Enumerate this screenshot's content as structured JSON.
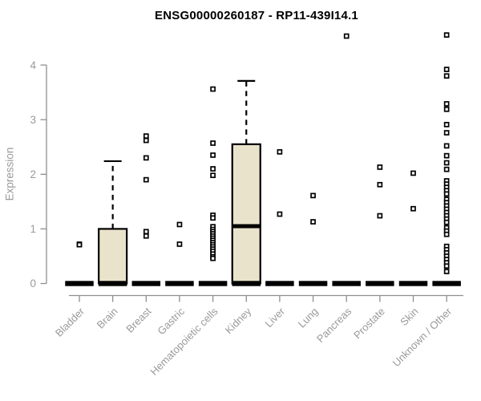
{
  "chart_data": {
    "type": "boxplot",
    "title": "ENSG00000260187 - RP11-439I14.1",
    "ylabel": "Expression",
    "xlabel": "",
    "ylim": [
      0,
      4.67
    ],
    "yticks": [
      0,
      1,
      2,
      3,
      4
    ],
    "grid": false,
    "legend": null,
    "colors": {
      "background": "#FFFFFF",
      "box_fill": "#EAE3CB",
      "box_stroke": "#000000",
      "axis_line": "#8F8F8F",
      "tick_text": "#9A9A9A",
      "title_text": "#000000",
      "outlier_fill": "#FFFFFF"
    },
    "categories": [
      "Bladder",
      "Brain",
      "Breast",
      "Gastric",
      "Hematopoietic cells",
      "Kidney",
      "Liver",
      "Lung",
      "Pancreas",
      "Prostate",
      "Skin",
      "Unknown / Other"
    ],
    "series": [
      {
        "name": "Bladder",
        "q1": 0,
        "median": 0,
        "q3": 0,
        "whisker_low": 0,
        "whisker_high": 0,
        "outliers": [
          0.72,
          0.71
        ]
      },
      {
        "name": "Brain",
        "q1": 0,
        "median": 0,
        "q3": 1.0,
        "whisker_low": 0,
        "whisker_high": 2.24,
        "outliers": []
      },
      {
        "name": "Breast",
        "q1": 0,
        "median": 0,
        "q3": 0,
        "whisker_low": 0,
        "whisker_high": 0,
        "outliers": [
          2.7,
          2.62,
          2.3,
          1.9,
          0.95,
          0.87
        ]
      },
      {
        "name": "Gastric",
        "q1": 0,
        "median": 0,
        "q3": 0,
        "whisker_low": 0,
        "whisker_high": 0,
        "outliers": [
          1.08,
          0.72
        ]
      },
      {
        "name": "Hematopoietic cells",
        "q1": 0,
        "median": 0,
        "q3": 0,
        "whisker_low": 0,
        "whisker_high": 0,
        "outliers": [
          3.56,
          2.57,
          2.35,
          2.1,
          1.98,
          1.25,
          1.2,
          1.04,
          0.99,
          0.95,
          0.91,
          0.87,
          0.83,
          0.79,
          0.75,
          0.71,
          0.67,
          0.63,
          0.59,
          0.54,
          0.49,
          0.46
        ]
      },
      {
        "name": "Kidney",
        "q1": 0,
        "median": 1.05,
        "q3": 2.55,
        "whisker_low": 0,
        "whisker_high": 3.71,
        "outliers": []
      },
      {
        "name": "Liver",
        "q1": 0,
        "median": 0,
        "q3": 0,
        "whisker_low": 0,
        "whisker_high": 0,
        "outliers": [
          2.41,
          1.27
        ]
      },
      {
        "name": "Lung",
        "q1": 0,
        "median": 0,
        "q3": 0,
        "whisker_low": 0,
        "whisker_high": 0,
        "outliers": [
          1.61,
          1.13
        ]
      },
      {
        "name": "Pancreas",
        "q1": 0,
        "median": 0,
        "q3": 0,
        "whisker_low": 0,
        "whisker_high": 0,
        "outliers": [
          4.53
        ]
      },
      {
        "name": "Prostate",
        "q1": 0,
        "median": 0,
        "q3": 0,
        "whisker_low": 0,
        "whisker_high": 0,
        "outliers": [
          2.13,
          1.81,
          1.24
        ]
      },
      {
        "name": "Skin",
        "q1": 0,
        "median": 0,
        "q3": 0,
        "whisker_low": 0,
        "whisker_high": 0,
        "outliers": [
          2.02,
          1.37
        ]
      },
      {
        "name": "Unknown / Other",
        "q1": 0,
        "median": 0,
        "q3": 0,
        "whisker_low": 0,
        "whisker_high": 0,
        "outliers": [
          4.55,
          3.92,
          3.8,
          3.29,
          3.19,
          2.91,
          2.76,
          2.52,
          2.34,
          2.21,
          2.09,
          1.88,
          1.82,
          1.76,
          1.7,
          1.64,
          1.54,
          1.48,
          1.42,
          1.36,
          1.3,
          1.24,
          1.18,
          1.12,
          1.02,
          0.96,
          0.9,
          0.68,
          0.62,
          0.56,
          0.5,
          0.44,
          0.38,
          0.32,
          0.22
        ]
      }
    ]
  }
}
